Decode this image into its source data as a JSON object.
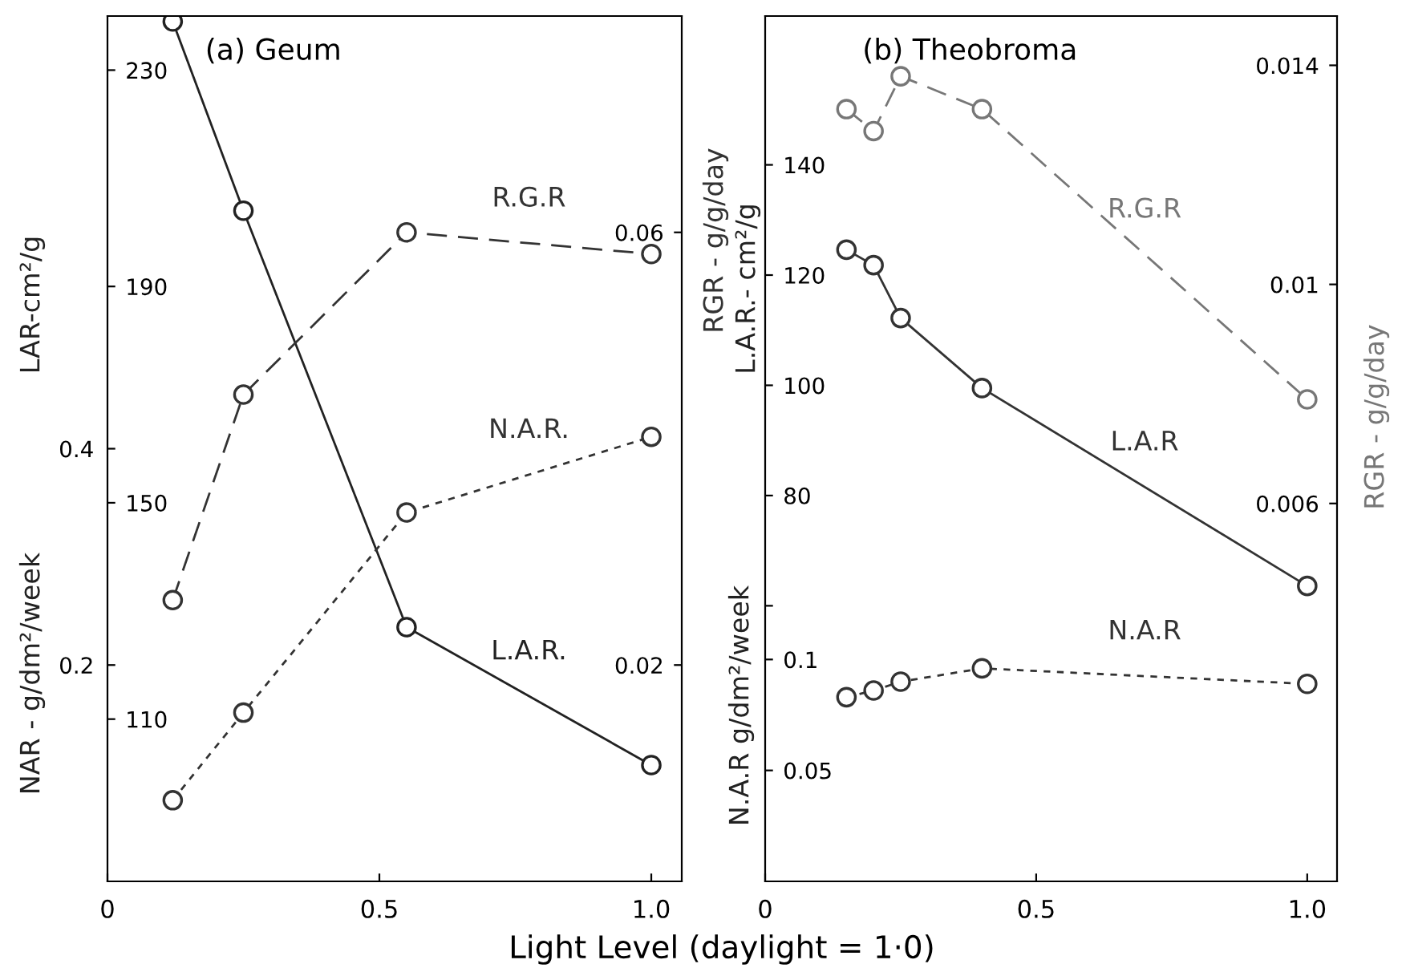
{
  "chart_data": [
    {
      "type": "line",
      "title": "(a) Geum",
      "xlabel": "Light Level (daylight = 1·0)",
      "ylabel": "LAR-cm²/g",
      "y2label": "RGR - g/g/day",
      "y3label": "NAR - g/dm²/week",
      "xlim": [
        0,
        1.056
      ],
      "xticks": [
        0,
        0.5,
        {
          "value": 1.0,
          "label": "1.0"
        }
      ],
      "ylim": [
        80,
        240
      ],
      "yticks": [
        110,
        150,
        190,
        230
      ],
      "y2lim": [
        0,
        0.08
      ],
      "y2ticks": [
        0.02,
        0.06
      ],
      "y3lim": [
        0,
        0.8
      ],
      "y3ticks": [
        0.2,
        0.4
      ],
      "marker": "circle",
      "series": [
        {
          "name": "R.G.R",
          "color": "#333333",
          "axis": "y2",
          "line_style": "dashed",
          "x": [
            0.12,
            0.25,
            0.55,
            1.0
          ],
          "values": [
            0.026,
            0.045,
            0.06,
            0.058
          ]
        },
        {
          "name": "N.A.R.",
          "color": "#333333",
          "axis": "y3",
          "line_style": "dotted",
          "x": [
            0.12,
            0.25,
            0.55,
            1.0
          ],
          "values": [
            0.075,
            0.156,
            0.341,
            0.411
          ]
        },
        {
          "name": "L.A.R.",
          "color": "#222222",
          "axis": "y",
          "line_style": "solid",
          "x": [
            0.12,
            0.25,
            0.55,
            1.0
          ],
          "values": [
            239,
            204,
            127,
            101.5
          ]
        }
      ]
    },
    {
      "type": "line",
      "title": "(b) Theobroma",
      "ylabel": "L.A.R.- cm²/g",
      "y2label": "RGR - g/g/day",
      "y3label": "N.A.R g/dm²/week",
      "xlim": [
        0,
        1.055
      ],
      "xticks": [
        0,
        0.5,
        {
          "value": 1.0,
          "label": "1.0"
        }
      ],
      "ylim": [
        10,
        167
      ],
      "yticks": [
        {
          "value": 60,
          "label": null
        },
        80,
        100,
        120,
        140
      ],
      "y2lim": [
        -0.0009,
        0.0149
      ],
      "y2ticks": [
        0.006,
        0.01,
        0.014
      ],
      "y3lim": [
        0,
        0.39
      ],
      "y3ticks": [
        0.05,
        0.1
      ],
      "marker": "circle",
      "series": [
        {
          "name": "R.G.R",
          "color": "#777777",
          "axis": "y2",
          "line_style": "dashed",
          "x": [
            0.15,
            0.2,
            0.25,
            0.4,
            1.0
          ],
          "values": [
            0.0132,
            0.0128,
            0.0138,
            0.0132,
            0.0079
          ]
        },
        {
          "name": "L.A.R",
          "color": "#333333",
          "axis": "y",
          "line_style": "solid",
          "x": [
            0.15,
            0.2,
            0.25,
            0.4,
            1.0
          ],
          "values": [
            124.6,
            121.8,
            112.2,
            99.5,
            63.6
          ]
        },
        {
          "name": "N.A.R",
          "color": "#333333",
          "axis": "y3",
          "line_style": "dotted",
          "x": [
            0.15,
            0.2,
            0.25,
            0.4,
            1.0
          ],
          "values": [
            0.083,
            0.086,
            0.09,
            0.096,
            0.089
          ]
        }
      ]
    }
  ]
}
